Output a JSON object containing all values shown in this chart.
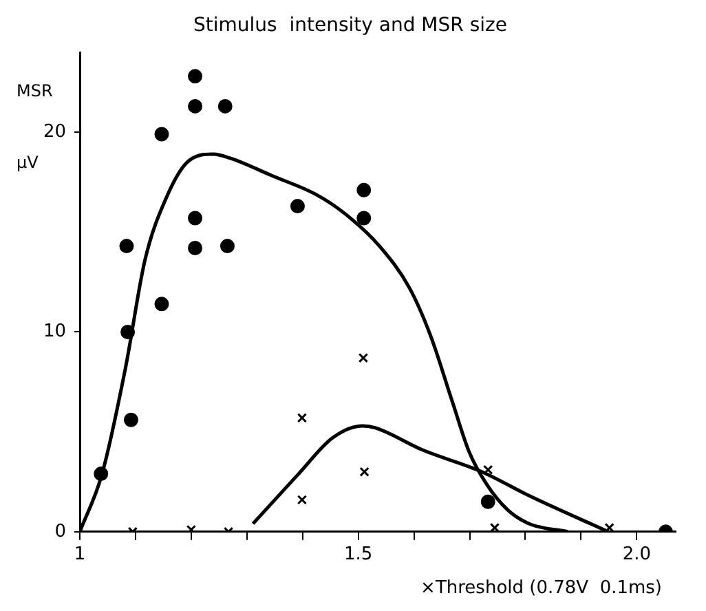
{
  "chart_data": {
    "type": "scatter",
    "title": "Stimulus  intensity and MSR size",
    "xlabel": "×Threshold (0.78V  0.1ms)",
    "ylabel": "MSR μV",
    "xlim": [
      1,
      2.07
    ],
    "ylim": [
      0,
      24
    ],
    "xticks": [
      1,
      {
        "value": 1.1,
        "label": null
      },
      {
        "value": 1.2,
        "label": null
      },
      {
        "value": 1.3,
        "label": null
      },
      {
        "value": 1.4,
        "label": null
      },
      1.5,
      {
        "value": 1.6,
        "label": null
      },
      {
        "value": 1.7,
        "label": null
      },
      {
        "value": 1.8,
        "label": null
      },
      {
        "value": 1.9,
        "label": null
      },
      {
        "value": 2,
        "label": "2.0"
      }
    ],
    "yticks": [
      0,
      10,
      20
    ],
    "grid": false,
    "legend": false,
    "series": [
      {
        "type": "scatter",
        "marker": "circle",
        "color": "#000000",
        "x": [
          1.038,
          1.084,
          1.086,
          1.092,
          1.147,
          1.147,
          1.207,
          1.207,
          1.207,
          1.207,
          1.261,
          1.265,
          1.391,
          1.51,
          1.51,
          1.733,
          2.052
        ],
        "values": [
          2.9,
          14.3,
          10.0,
          5.6,
          19.9,
          11.4,
          22.8,
          21.3,
          15.7,
          14.2,
          21.3,
          14.3,
          16.3,
          17.1,
          15.7,
          1.5,
          0
        ]
      },
      {
        "type": "scatter",
        "marker": "cross",
        "color": "#000000",
        "x": [
          1.095,
          1.2,
          1.267,
          1.399,
          1.399,
          1.509,
          1.511,
          1.733,
          1.745,
          1.951
        ],
        "values": [
          0,
          0.1,
          0,
          5.7,
          1.6,
          8.7,
          3.0,
          3.1,
          0.2,
          0.2
        ]
      },
      {
        "type": "line",
        "marker": "none",
        "line_style": "solid",
        "color": "#000000",
        "x": [
          1.0,
          1.04,
          1.082,
          1.117,
          1.155,
          1.193,
          1.239,
          1.27,
          1.347,
          1.423,
          1.477,
          1.538,
          1.592,
          1.63,
          1.669,
          1.699,
          1.73,
          1.768,
          1.807,
          1.876
        ],
        "values": [
          0,
          2.9,
          8.2,
          13.6,
          16.7,
          18.5,
          18.9,
          18.7,
          17.8,
          16.9,
          15.9,
          14.3,
          12.2,
          9.8,
          6.5,
          4.0,
          2.4,
          1.1,
          0.4,
          0
        ]
      },
      {
        "type": "line",
        "marker": "none",
        "line_style": "solid",
        "color": "#000000",
        "x": [
          1.311,
          1.393,
          1.454,
          1.508,
          1.531,
          1.615,
          1.722,
          1.807,
          1.949
        ],
        "values": [
          0.4,
          2.9,
          4.7,
          5.3,
          5.2,
          4.1,
          3.0,
          1.8,
          0
        ]
      }
    ]
  }
}
